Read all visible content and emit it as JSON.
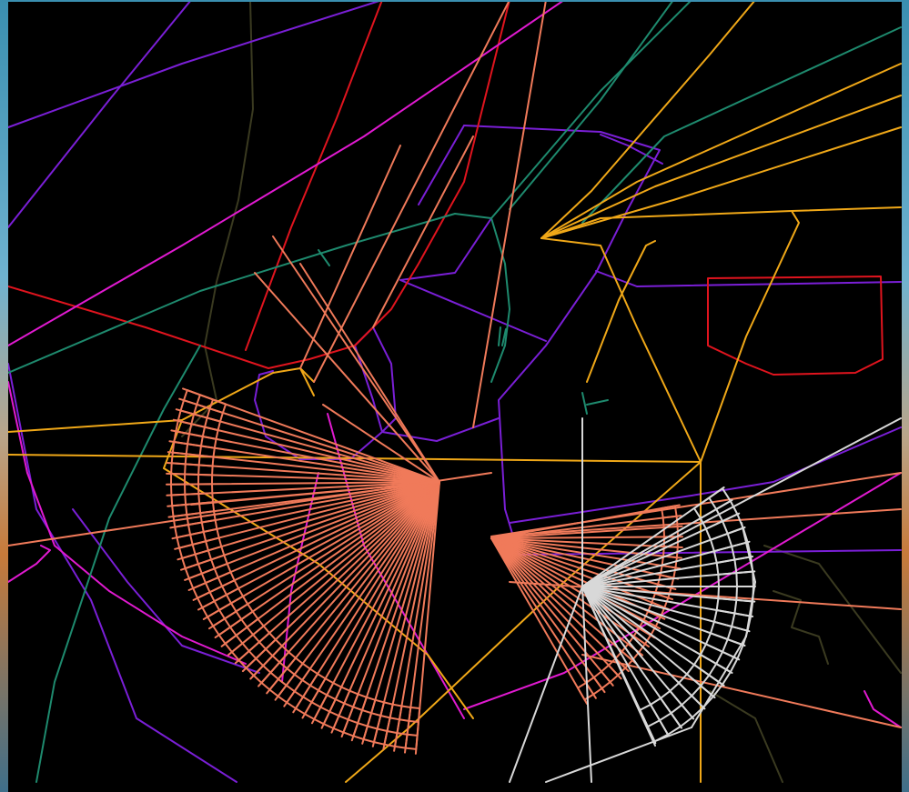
{
  "colors": {
    "canvas": "#000000",
    "purple": "#7a1fd6",
    "magenta": "#e01ad0",
    "red": "#e0141e",
    "teal": "#1e8a6e",
    "orange": "#f0a818",
    "salmon": "#f07a5a",
    "white": "#d8d8d8",
    "olive": "#3a3a20"
  },
  "layers": [
    {
      "name": "airspace-boundaries",
      "color_key": "purple"
    },
    {
      "name": "restricted-areas",
      "color_key": "red"
    },
    {
      "name": "routes-magenta",
      "color_key": "magenta"
    },
    {
      "name": "routes-teal",
      "color_key": "teal"
    },
    {
      "name": "approach-paths",
      "color_key": "orange"
    },
    {
      "name": "runway-fan-primary",
      "color_key": "salmon"
    },
    {
      "name": "runway-fan-secondary",
      "color_key": "white"
    },
    {
      "name": "terrain-contours",
      "color_key": "olive"
    }
  ]
}
